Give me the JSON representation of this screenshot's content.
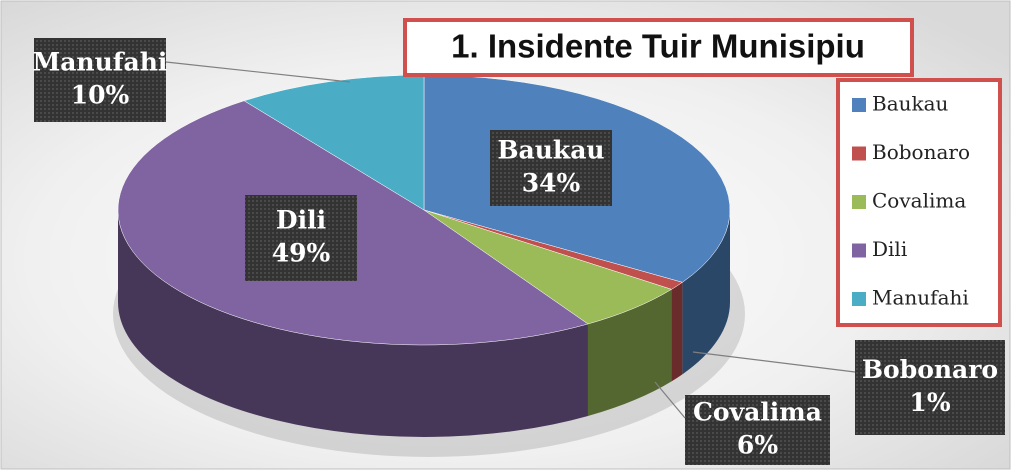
{
  "chart_data": {
    "type": "pie",
    "title": "1. Insidente Tuir Munisipiu",
    "categories": [
      "Baukau",
      "Bobonaro",
      "Covalima",
      "Dili",
      "Manufahi"
    ],
    "values": [
      34,
      1,
      6,
      49,
      10
    ],
    "value_labels": [
      "34%",
      "1%",
      "6%",
      "49%",
      "10%"
    ],
    "colors": [
      "#4f81bd",
      "#c0504d",
      "#9bbb59",
      "#8064a2",
      "#4bacc6"
    ],
    "legend": "right"
  }
}
